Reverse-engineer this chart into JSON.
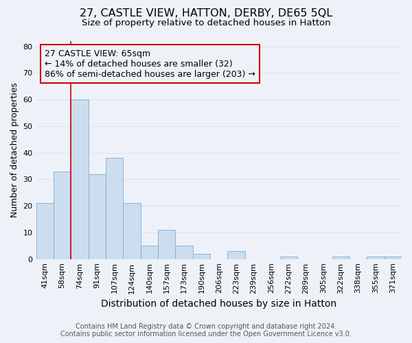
{
  "title": "27, CASTLE VIEW, HATTON, DERBY, DE65 5QL",
  "subtitle": "Size of property relative to detached houses in Hatton",
  "xlabel": "Distribution of detached houses by size in Hatton",
  "ylabel": "Number of detached properties",
  "bar_labels": [
    "41sqm",
    "58sqm",
    "74sqm",
    "91sqm",
    "107sqm",
    "124sqm",
    "140sqm",
    "157sqm",
    "173sqm",
    "190sqm",
    "206sqm",
    "223sqm",
    "239sqm",
    "256sqm",
    "272sqm",
    "289sqm",
    "305sqm",
    "322sqm",
    "338sqm",
    "355sqm",
    "371sqm"
  ],
  "bar_values": [
    21,
    33,
    60,
    32,
    38,
    21,
    5,
    11,
    5,
    2,
    0,
    3,
    0,
    0,
    1,
    0,
    0,
    1,
    0,
    1,
    1
  ],
  "bar_color": "#ccddf0",
  "bar_edge_color": "#7aadd4",
  "ylim": [
    0,
    82
  ],
  "yticks": [
    0,
    10,
    20,
    30,
    40,
    50,
    60,
    70,
    80
  ],
  "vline_color": "#cc0000",
  "annotation_title": "27 CASTLE VIEW: 65sqm",
  "annotation_line1": "← 14% of detached houses are smaller (32)",
  "annotation_line2": "86% of semi-detached houses are larger (203) →",
  "annotation_box_color": "#cc0000",
  "footer_line1": "Contains HM Land Registry data © Crown copyright and database right 2024.",
  "footer_line2": "Contains public sector information licensed under the Open Government Licence v3.0.",
  "background_color": "#eef2f8",
  "grid_color": "#d8e4f0",
  "title_fontsize": 11.5,
  "subtitle_fontsize": 9.5,
  "xlabel_fontsize": 10,
  "ylabel_fontsize": 9,
  "tick_fontsize": 8,
  "annotation_fontsize": 9,
  "footer_fontsize": 7
}
